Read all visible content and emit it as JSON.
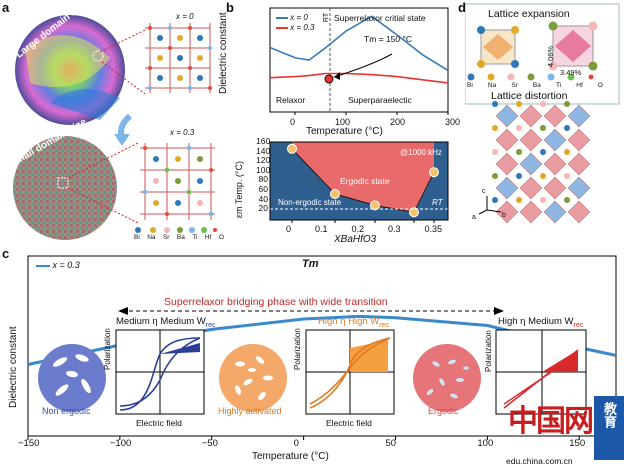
{
  "panels": {
    "a": "a",
    "b": "b",
    "c": "c",
    "d": "d"
  },
  "panel_a": {
    "large_label": "Large domain size",
    "small_label": "Small domain size",
    "x0": "x = 0",
    "x03": "x = 0.3",
    "elements": [
      "Bi",
      "Na",
      "Sr",
      "Ba",
      "Ti",
      "Hf",
      "O"
    ],
    "element_colors": [
      "#2d78b8",
      "#e0a928",
      "#f4b6b6",
      "#7b9c3a",
      "#7db7e8",
      "#6cbf4a",
      "#e24a3a"
    ]
  },
  "panel_b_top": {
    "legend": [
      "x = 0",
      "x = 0.3"
    ],
    "rt": "RT",
    "superrelaxor": "Superrelaxor critial state",
    "tm": "Tm = 150 °C",
    "relaxor": "Relaxor",
    "superpara": "Superparaelectic",
    "ylabel": "Dielectric constant",
    "xlabel": "Temperature (°C)",
    "xticks": [
      "0",
      "100",
      "200",
      "300"
    ]
  },
  "panel_b_bottom": {
    "freq": "@1000 kHz",
    "ergodic": "Ergodic state",
    "nonergodic": "Non-ergodic state",
    "rt": "RT",
    "ylabel": "εm Temp. (°C)",
    "xlabel": "XBaHfO3",
    "xticks": [
      "0",
      "0.1",
      "0.2",
      "0.3",
      "0.35"
    ],
    "yticks": [
      "20",
      "40",
      "60",
      "80",
      "100",
      "120",
      "140",
      "160"
    ]
  },
  "panel_c": {
    "legend": "x = 0.3",
    "tm": "Tm",
    "bridging": "Superrelaxor bridging phase with wide transition",
    "ylabel": "Dielectric constant",
    "xlabel": "Temperature (°C)",
    "xticks": [
      "−150",
      "−100",
      "−50",
      "0",
      "50",
      "100",
      "150"
    ],
    "loop1_title": "Medium η Medium W",
    "loop2_title": "High η High W",
    "loop3_title": "High η Medium W",
    "rec": "rec",
    "polarization": "Polarization",
    "electric_field": "Electric field",
    "state1": "Non ergodic",
    "state2": "Highly activated",
    "state3": "Ergodic"
  },
  "panel_d": {
    "title1": "Lattice expansion",
    "title2": "Lattice distortion",
    "pct1": "4.06%",
    "pct2": "3.49%",
    "elements": [
      "Bi",
      "Na",
      "Sr",
      "Ba",
      "Ti",
      "Hf",
      "O"
    ],
    "axes": [
      "c",
      "a",
      "b"
    ]
  },
  "watermark": {
    "big": "中国网",
    "edu": "教育",
    "url": "edu.china.com.cn"
  },
  "chart_data": [
    {
      "type": "line",
      "title": "",
      "xlabel": "Temperature (°C)",
      "ylabel": "Dielectric constant",
      "xlim": [
        -50,
        300
      ],
      "series": [
        {
          "name": "x = 0",
          "x": [
            -50,
            0,
            27,
            60,
            100,
            150,
            200,
            250,
            300
          ],
          "y": [
            0.62,
            0.52,
            0.5,
            0.62,
            0.78,
            0.92,
            0.74,
            0.55,
            0.4
          ]
        },
        {
          "name": "x = 0.3",
          "x": [
            -50,
            0,
            27,
            60,
            100,
            150,
            200,
            250,
            300
          ],
          "y": [
            0.33,
            0.34,
            0.35,
            0.37,
            0.37,
            0.36,
            0.34,
            0.31,
            0.28
          ]
        }
      ]
    },
    {
      "type": "line",
      "title": "",
      "xlabel": "XBaHfO3",
      "ylabel": "εm Temp. (°C)",
      "ylim": [
        10,
        160
      ],
      "categories": [
        "0",
        "0.1",
        "0.2",
        "0.3",
        "0.35"
      ],
      "series": [
        {
          "name": "",
          "values": [
            147,
            60,
            38,
            25,
            102
          ]
        }
      ]
    },
    {
      "type": "line",
      "title": "",
      "xlabel": "Temperature (°C)",
      "ylabel": "Dielectric constant",
      "xlim": [
        -150,
        170
      ],
      "series": [
        {
          "name": "x = 0.3",
          "x": [
            -150,
            -100,
            -50,
            0,
            30,
            50,
            100,
            150,
            170
          ],
          "y": [
            0.55,
            0.7,
            0.82,
            0.9,
            0.92,
            0.91,
            0.85,
            0.68,
            0.62
          ]
        }
      ]
    }
  ]
}
